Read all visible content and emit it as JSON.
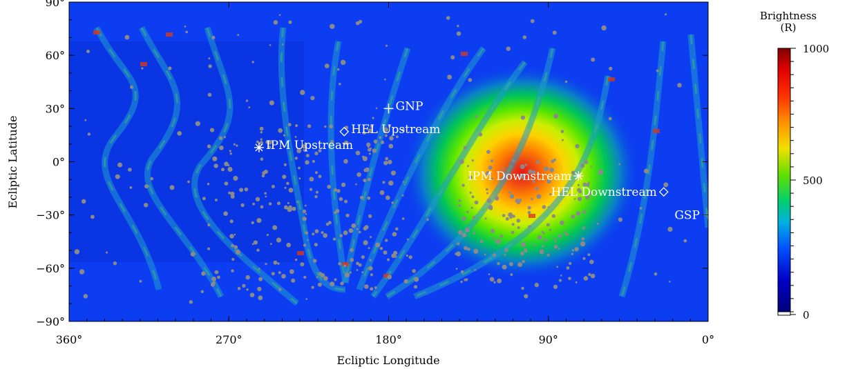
{
  "chart_data": {
    "type": "heatmap",
    "title": "",
    "xlabel": "Ecliptic Longitude",
    "ylabel": "Ecliptic Latitude",
    "xlim": [
      360,
      0
    ],
    "ylim": [
      -90,
      90
    ],
    "x_ticks": [
      {
        "value": 360,
        "label": "360°"
      },
      {
        "value": 270,
        "label": "270°"
      },
      {
        "value": 180,
        "label": "180°"
      },
      {
        "value": 90,
        "label": "90°"
      },
      {
        "value": 0,
        "label": "0°"
      }
    ],
    "y_ticks": [
      {
        "value": 90,
        "label": "90°"
      },
      {
        "value": 60,
        "label": "60°"
      },
      {
        "value": 30,
        "label": "30°"
      },
      {
        "value": 0,
        "label": "0°"
      },
      {
        "value": -30,
        "label": "−30°"
      },
      {
        "value": -60,
        "label": "−60°"
      },
      {
        "value": -90,
        "label": "−90°"
      }
    ],
    "colorbar": {
      "title_line1": "Brightness",
      "title_line2": "(R)",
      "min": 0,
      "max": 1000,
      "tick_labels": [
        {
          "value": 1000,
          "label": "1000"
        },
        {
          "value": 500,
          "label": "500"
        },
        {
          "value": 0,
          "label": "0"
        }
      ]
    },
    "brightness_peak": {
      "lon": 105,
      "lat": -2,
      "value": 1000
    },
    "markers": [
      {
        "name": "GNP",
        "label": "GNP",
        "lon": 180,
        "lat": 30,
        "symbol": "plus"
      },
      {
        "name": "HEL Upstream",
        "label": "HEL Upstream",
        "lon": 205,
        "lat": 17,
        "symbol": "diamond"
      },
      {
        "name": "IPM Upstream",
        "label": "IPM Upstream",
        "lon": 253,
        "lat": 8,
        "symbol": "asterisk"
      },
      {
        "name": "IPM Downstream",
        "label": "IPM Downstream",
        "lon": 73,
        "lat": -8,
        "symbol": "asterisk"
      },
      {
        "name": "HEL Downstream",
        "label": "HEL Downstream",
        "lon": 25,
        "lat": -17,
        "symbol": "diamond"
      },
      {
        "name": "GSP",
        "label": "GSP",
        "lon": 0,
        "lat": -30,
        "symbol": "plus"
      }
    ]
  }
}
